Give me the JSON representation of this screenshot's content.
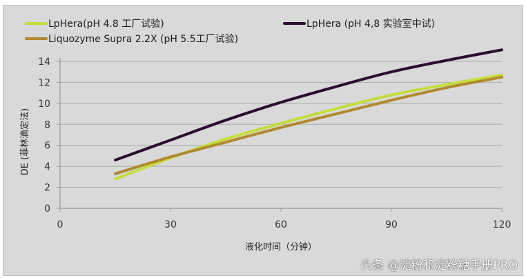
{
  "legend": {
    "items": [
      {
        "label": "LpHera(pH 4.8 工厂试验)",
        "color": "#c5dc3c"
      },
      {
        "label": "LpHera (pH 4,8 实验室中试)",
        "color": "#2a0f2e"
      },
      {
        "label": "Liquozyme Supra 2.2X (pH 5.5工厂试验)",
        "color": "#b08a30"
      }
    ]
  },
  "axes": {
    "xlabel": "液化时间（分钟）",
    "ylabel": "DE (菲林滴定法)"
  },
  "watermark": "头条 @淀粉和淀粉糖手册PRO",
  "chart_data": {
    "type": "line",
    "title": "",
    "xlabel": "液化时间（分钟）",
    "ylabel": "DE (菲林滴定法)",
    "xlim": [
      0,
      120
    ],
    "ylim": [
      0,
      14
    ],
    "xticks": [
      0,
      30,
      60,
      90,
      120
    ],
    "yticks": [
      0,
      2,
      4,
      6,
      8,
      10,
      12,
      14
    ],
    "grid": "horizontal",
    "legend_position": "top",
    "x": [
      15,
      30,
      45,
      60,
      75,
      90,
      105,
      120
    ],
    "series": [
      {
        "name": "LpHera(pH 4.8 工厂试验)",
        "color": "#c5dc3c",
        "values": [
          2.8,
          4.8,
          6.6,
          8.1,
          9.5,
          10.8,
          11.8,
          12.7
        ]
      },
      {
        "name": "LpHera (pH 4,8 实验室中试)",
        "color": "#2a0f2e",
        "values": [
          4.6,
          6.5,
          8.4,
          10.1,
          11.6,
          13.0,
          14.1,
          15.1
        ]
      },
      {
        "name": "Liquozyme Supra 2.2X (pH 5.5工厂试验)",
        "color": "#b08a30",
        "values": [
          3.3,
          4.9,
          6.3,
          7.7,
          9.0,
          10.3,
          11.5,
          12.5
        ]
      }
    ]
  }
}
